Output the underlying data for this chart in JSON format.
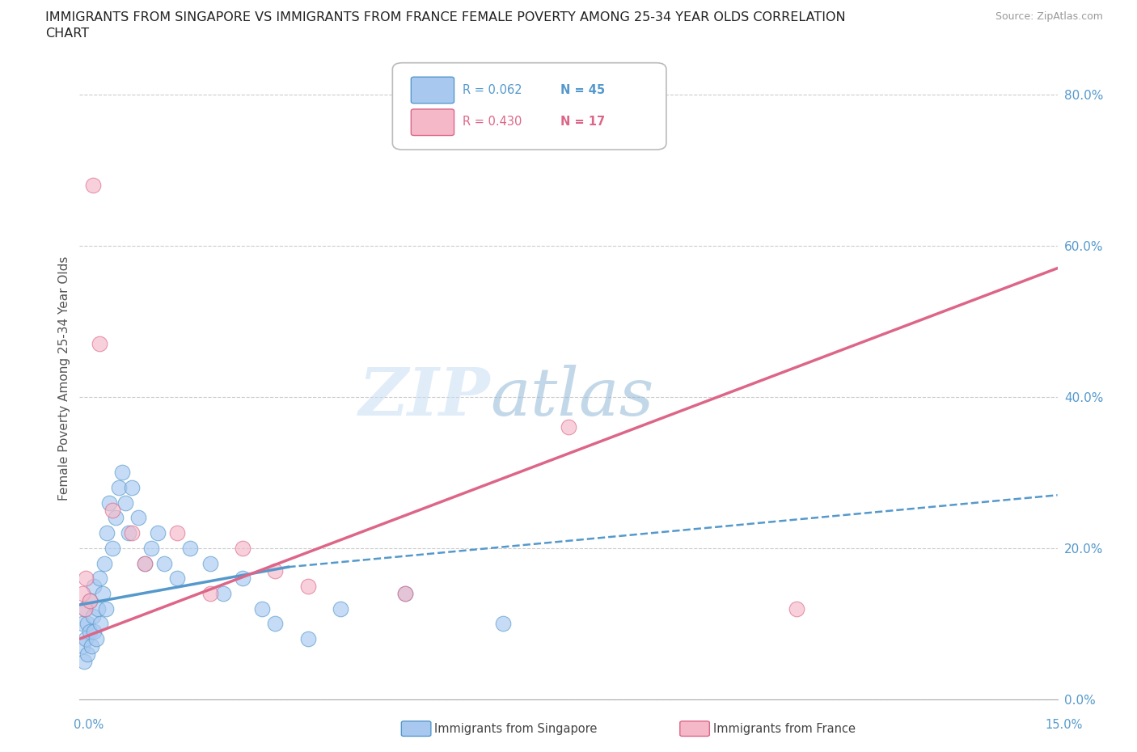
{
  "title_line1": "IMMIGRANTS FROM SINGAPORE VS IMMIGRANTS FROM FRANCE FEMALE POVERTY AMONG 25-34 YEAR OLDS CORRELATION",
  "title_line2": "CHART",
  "source": "Source: ZipAtlas.com",
  "ylabel": "Female Poverty Among 25-34 Year Olds",
  "xlim": [
    0.0,
    15.0
  ],
  "ylim": [
    0.0,
    85.0
  ],
  "yticks": [
    0,
    20,
    40,
    60,
    80
  ],
  "ytick_labels": [
    "0.0%",
    "20.0%",
    "40.0%",
    "60.0%",
    "80.0%"
  ],
  "watermark_ZIP": "ZIP",
  "watermark_atlas": "atlas",
  "legend_r_singapore": "R = 0.062",
  "legend_n_singapore": "N = 45",
  "legend_r_france": "R = 0.430",
  "legend_n_france": "N = 17",
  "singapore_color": "#a8c8f0",
  "singapore_edge_color": "#5599cc",
  "singapore_line_color": "#5599cc",
  "france_color": "#f5b8c8",
  "france_edge_color": "#dd6688",
  "france_line_color": "#dd6688",
  "axis_color": "#5599cc",
  "singapore_points_x": [
    0.05,
    0.05,
    0.07,
    0.08,
    0.1,
    0.12,
    0.12,
    0.15,
    0.15,
    0.18,
    0.2,
    0.22,
    0.22,
    0.25,
    0.28,
    0.3,
    0.32,
    0.35,
    0.38,
    0.4,
    0.42,
    0.45,
    0.5,
    0.55,
    0.6,
    0.65,
    0.7,
    0.75,
    0.8,
    0.9,
    1.0,
    1.1,
    1.2,
    1.3,
    1.5,
    1.7,
    2.0,
    2.2,
    2.5,
    2.8,
    3.0,
    3.5,
    4.0,
    5.0,
    6.5
  ],
  "singapore_points_y": [
    10.0,
    7.0,
    5.0,
    12.0,
    8.0,
    10.0,
    6.0,
    9.0,
    13.0,
    7.0,
    11.0,
    9.0,
    15.0,
    8.0,
    12.0,
    16.0,
    10.0,
    14.0,
    18.0,
    12.0,
    22.0,
    26.0,
    20.0,
    24.0,
    28.0,
    30.0,
    26.0,
    22.0,
    28.0,
    24.0,
    18.0,
    20.0,
    22.0,
    18.0,
    16.0,
    20.0,
    18.0,
    14.0,
    16.0,
    12.0,
    10.0,
    8.0,
    12.0,
    14.0,
    10.0
  ],
  "france_points_x": [
    0.05,
    0.08,
    0.1,
    0.15,
    0.2,
    0.3,
    0.5,
    0.8,
    1.0,
    1.5,
    2.0,
    2.5,
    3.0,
    3.5,
    5.0,
    7.5,
    11.0
  ],
  "france_points_y": [
    14.0,
    12.0,
    16.0,
    13.0,
    68.0,
    47.0,
    25.0,
    22.0,
    18.0,
    22.0,
    14.0,
    20.0,
    17.0,
    15.0,
    14.0,
    36.0,
    12.0
  ],
  "sg_trend_x0": 0.0,
  "sg_trend_x1": 3.2,
  "sg_trend_x2": 15.0,
  "sg_trend_y0": 12.5,
  "sg_trend_y1": 17.5,
  "sg_trend_y2": 27.0,
  "fr_trend_x0": 0.0,
  "fr_trend_x1": 15.0,
  "fr_trend_y0": 8.0,
  "fr_trend_y1": 57.0,
  "background_color": "#ffffff",
  "grid_color": "#cccccc"
}
